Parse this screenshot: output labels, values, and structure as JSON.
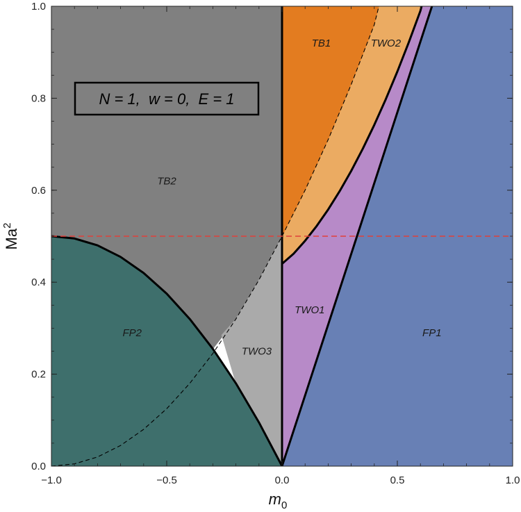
{
  "chart_data": {
    "type": "area",
    "xlabel": "m",
    "xlabel_sub": "0",
    "ylabel": "Ma",
    "ylabel_sup": "2",
    "xlim": [
      -1.0,
      1.0
    ],
    "ylim": [
      0.0,
      1.0
    ],
    "x_ticks": [
      {
        "value": -1.0,
        "label": "−1.0"
      },
      {
        "value": -0.5,
        "label": "−0.5"
      },
      {
        "value": 0.0,
        "label": "0.0"
      },
      {
        "value": 0.5,
        "label": "0.5"
      },
      {
        "value": 1.0,
        "label": "1.0"
      }
    ],
    "y_ticks": [
      {
        "value": 0.0,
        "label": "0.0"
      },
      {
        "value": 0.2,
        "label": "0.2"
      },
      {
        "value": 0.4,
        "label": "0.4"
      },
      {
        "value": 0.6,
        "label": "0.6"
      },
      {
        "value": 0.8,
        "label": "0.8"
      },
      {
        "value": 1.0,
        "label": "1.0"
      }
    ],
    "annotation": "N = 1,  w = 0,  E = 1",
    "reference_line": {
      "y": 0.5,
      "color": "#e0403a",
      "style": "dashed"
    },
    "regions": [
      {
        "name": "TB2",
        "color": "#808080",
        "label_pos": [
          -0.5,
          0.62
        ]
      },
      {
        "name": "FP2",
        "color": "#3e6f6c",
        "label_pos": [
          -0.65,
          0.29
        ]
      },
      {
        "name": "TWO3",
        "color": "#aaaaaa",
        "label_pos": [
          -0.11,
          0.25
        ]
      },
      {
        "name": "TB1",
        "color": "#e37c20",
        "label_pos": [
          0.17,
          0.92
        ]
      },
      {
        "name": "TWO2",
        "color": "#ebab62",
        "label_pos": [
          0.45,
          0.92
        ]
      },
      {
        "name": "TWO1",
        "color": "#b78ac8",
        "label_pos": [
          0.12,
          0.34
        ]
      },
      {
        "name": "FP1",
        "color": "#6880b5",
        "label_pos": [
          0.65,
          0.29
        ]
      }
    ],
    "curves": [
      {
        "name": "FP2 boundary",
        "style": "solid",
        "points": [
          [
            -1.0,
            0.5
          ],
          [
            -0.9,
            0.495
          ],
          [
            -0.8,
            0.48
          ],
          [
            -0.7,
            0.455
          ],
          [
            -0.6,
            0.42
          ],
          [
            -0.5,
            0.375
          ],
          [
            -0.4,
            0.32
          ],
          [
            -0.3,
            0.255
          ],
          [
            -0.2,
            0.18
          ],
          [
            -0.1,
            0.095
          ],
          [
            0.0,
            0.0
          ]
        ]
      },
      {
        "name": "dashed parabola left",
        "style": "dashed",
        "points": [
          [
            -1.0,
            0.0
          ],
          [
            -0.9,
            0.005
          ],
          [
            -0.8,
            0.02
          ],
          [
            -0.7,
            0.045
          ],
          [
            -0.6,
            0.08
          ],
          [
            -0.5,
            0.125
          ],
          [
            -0.4,
            0.18
          ],
          [
            -0.3,
            0.245
          ],
          [
            -0.2,
            0.32
          ],
          [
            -0.1,
            0.405
          ],
          [
            0.0,
            0.5
          ]
        ]
      },
      {
        "name": "dashed parabola right",
        "style": "dashed",
        "points": [
          [
            0.0,
            0.5
          ],
          [
            0.1,
            0.6
          ],
          [
            0.2,
            0.71
          ],
          [
            0.3,
            0.83
          ],
          [
            0.4,
            0.96
          ],
          [
            0.42,
            1.0
          ]
        ]
      },
      {
        "name": "TWO1/TWO2 boundary",
        "style": "solid",
        "points": [
          [
            0.0,
            0.44
          ],
          [
            0.05,
            0.462
          ],
          [
            0.1,
            0.49
          ],
          [
            0.15,
            0.522
          ],
          [
            0.2,
            0.558
          ],
          [
            0.25,
            0.598
          ],
          [
            0.3,
            0.642
          ],
          [
            0.35,
            0.69
          ],
          [
            0.4,
            0.742
          ],
          [
            0.45,
            0.798
          ],
          [
            0.5,
            0.858
          ],
          [
            0.55,
            0.922
          ],
          [
            0.6,
            0.99
          ],
          [
            0.605,
            1.0
          ]
        ]
      },
      {
        "name": "TWO1/FP1 boundary",
        "style": "solid",
        "points": [
          [
            0.0,
            0.0
          ],
          [
            0.65,
            1.0
          ]
        ]
      },
      {
        "name": "m0 = 0 line",
        "style": "solid",
        "points": [
          [
            0.0,
            0.0
          ],
          [
            0.0,
            1.0
          ]
        ]
      }
    ]
  }
}
